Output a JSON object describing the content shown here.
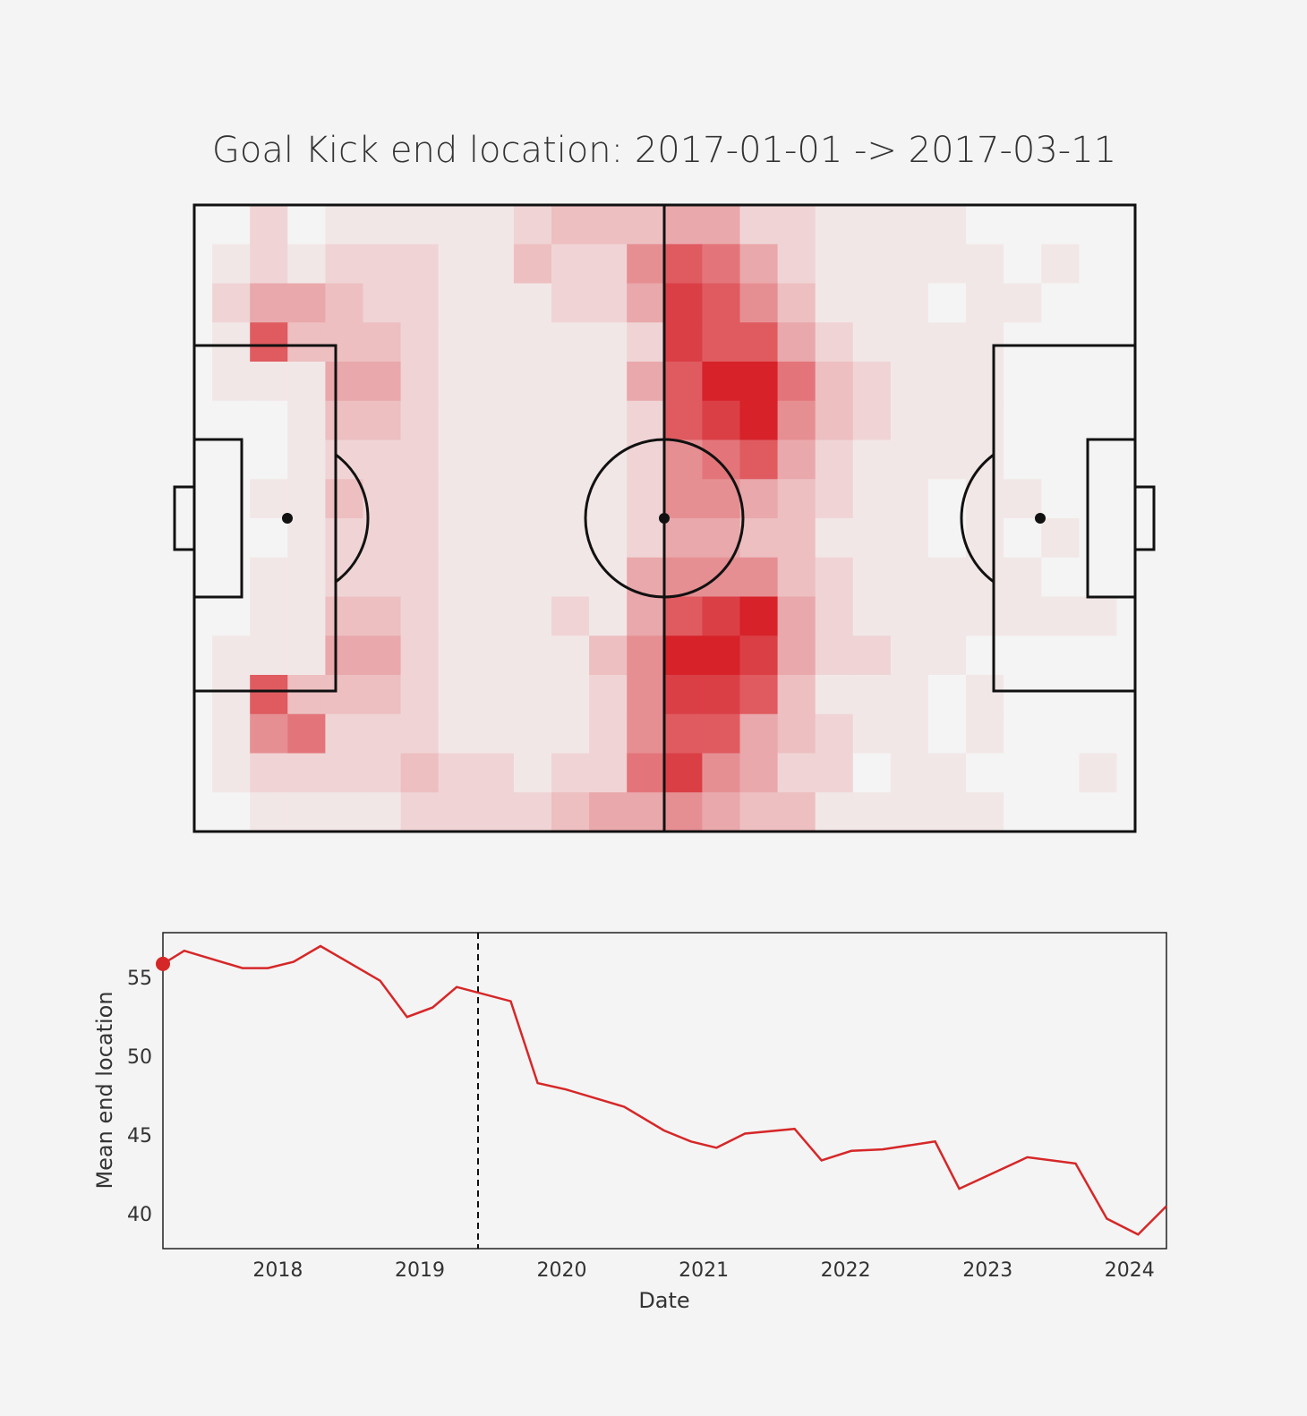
{
  "chart_data": [
    {
      "type": "heatmap",
      "title": "Goal Kick end location: 2017-01-01 -> 2017-03-11",
      "colors": [
        "#f4f4f4",
        "#d7222a"
      ],
      "z": [
        [
          0,
          0,
          2,
          0,
          1,
          1,
          1,
          1,
          1,
          2,
          3,
          3,
          3,
          4,
          4,
          2,
          2,
          1,
          1,
          1,
          1,
          0,
          0,
          0,
          0,
          0
        ],
        [
          0,
          1,
          2,
          1,
          2,
          2,
          2,
          1,
          1,
          3,
          2,
          2,
          5,
          7,
          6,
          4,
          2,
          1,
          1,
          1,
          1,
          1,
          0,
          1,
          0,
          0
        ],
        [
          0,
          2,
          4,
          4,
          3,
          2,
          2,
          1,
          1,
          1,
          2,
          2,
          4,
          8,
          7,
          5,
          3,
          1,
          1,
          1,
          0,
          1,
          1,
          0,
          0,
          0
        ],
        [
          0,
          1,
          7,
          3,
          3,
          3,
          2,
          1,
          1,
          1,
          1,
          1,
          2,
          8,
          7,
          7,
          4,
          2,
          1,
          1,
          1,
          1,
          0,
          0,
          0,
          0
        ],
        [
          0,
          1,
          1,
          1,
          4,
          4,
          2,
          1,
          1,
          1,
          1,
          1,
          4,
          7,
          9,
          9,
          6,
          3,
          2,
          1,
          1,
          1,
          0,
          0,
          0,
          0
        ],
        [
          0,
          0,
          0,
          1,
          3,
          3,
          2,
          1,
          1,
          1,
          1,
          1,
          2,
          7,
          8,
          9,
          5,
          3,
          2,
          1,
          1,
          1,
          0,
          0,
          0,
          0
        ],
        [
          0,
          0,
          0,
          1,
          2,
          2,
          2,
          1,
          1,
          1,
          1,
          1,
          2,
          5,
          6,
          7,
          4,
          2,
          1,
          1,
          1,
          1,
          0,
          0,
          0,
          0
        ],
        [
          0,
          0,
          1,
          1,
          3,
          2,
          2,
          1,
          1,
          1,
          1,
          1,
          2,
          5,
          5,
          4,
          3,
          2,
          1,
          1,
          0,
          1,
          1,
          0,
          0,
          0
        ],
        [
          0,
          0,
          0,
          1,
          2,
          2,
          2,
          1,
          1,
          1,
          1,
          1,
          2,
          4,
          4,
          3,
          3,
          1,
          1,
          1,
          0,
          1,
          0,
          1,
          0,
          0
        ],
        [
          0,
          0,
          1,
          1,
          2,
          2,
          2,
          1,
          1,
          1,
          1,
          1,
          4,
          5,
          5,
          5,
          3,
          2,
          1,
          1,
          1,
          1,
          1,
          0,
          0,
          0
        ],
        [
          0,
          0,
          1,
          1,
          3,
          3,
          2,
          1,
          1,
          1,
          2,
          1,
          4,
          7,
          8,
          9,
          4,
          2,
          1,
          1,
          1,
          1,
          1,
          1,
          1,
          0
        ],
        [
          0,
          1,
          1,
          1,
          4,
          4,
          2,
          1,
          1,
          1,
          1,
          3,
          5,
          9,
          9,
          8,
          4,
          2,
          2,
          1,
          1,
          0,
          0,
          0,
          0,
          0
        ],
        [
          0,
          1,
          7,
          3,
          3,
          3,
          2,
          1,
          1,
          1,
          1,
          2,
          5,
          8,
          8,
          7,
          3,
          1,
          1,
          1,
          0,
          1,
          0,
          0,
          0,
          0
        ],
        [
          0,
          1,
          5,
          6,
          2,
          2,
          2,
          1,
          1,
          1,
          1,
          2,
          5,
          7,
          7,
          4,
          3,
          2,
          1,
          1,
          0,
          1,
          0,
          0,
          0,
          0
        ],
        [
          0,
          1,
          2,
          2,
          2,
          2,
          3,
          2,
          2,
          1,
          2,
          2,
          6,
          8,
          5,
          4,
          2,
          2,
          0,
          1,
          1,
          0,
          0,
          0,
          1,
          0
        ],
        [
          0,
          0,
          1,
          1,
          1,
          1,
          2,
          2,
          2,
          2,
          3,
          4,
          4,
          5,
          4,
          3,
          3,
          1,
          1,
          1,
          1,
          1,
          0,
          0,
          0,
          0
        ]
      ]
    },
    {
      "type": "line",
      "xlabel": "Date",
      "ylabel": "Mean end location",
      "x": [
        2017.19,
        2017.34,
        2017.75,
        2017.93,
        2018.11,
        2018.3,
        2018.72,
        2018.91,
        2019.09,
        2019.26,
        2019.64,
        2019.83,
        2020.03,
        2020.44,
        2020.72,
        2020.91,
        2021.09,
        2021.29,
        2021.64,
        2021.83,
        2022.04,
        2022.26,
        2022.63,
        2022.8,
        2023.28,
        2023.62,
        2023.84,
        2024.06,
        2024.26
      ],
      "series": [
        {
          "color": "#d62728",
          "values": [
            55.97,
            56.8,
            55.7,
            55.7,
            56.1,
            57.1,
            54.9,
            52.6,
            53.2,
            54.5,
            53.6,
            48.4,
            48.0,
            46.9,
            45.4,
            44.7,
            44.3,
            45.2,
            45.5,
            43.5,
            44.1,
            44.2,
            44.7,
            41.7,
            43.7,
            43.3,
            39.8,
            38.8,
            40.6
          ]
        }
      ],
      "marker_point": {
        "x": 2017.19,
        "y": 55.97
      },
      "vline": 2019.41,
      "xlim": [
        2017.19,
        2024.26
      ],
      "ylim": [
        37.9,
        57.95
      ],
      "xticks": [
        2018,
        2019,
        2020,
        2021,
        2022,
        2023,
        2024
      ],
      "yticks": [
        40,
        45,
        50,
        55
      ]
    }
  ]
}
